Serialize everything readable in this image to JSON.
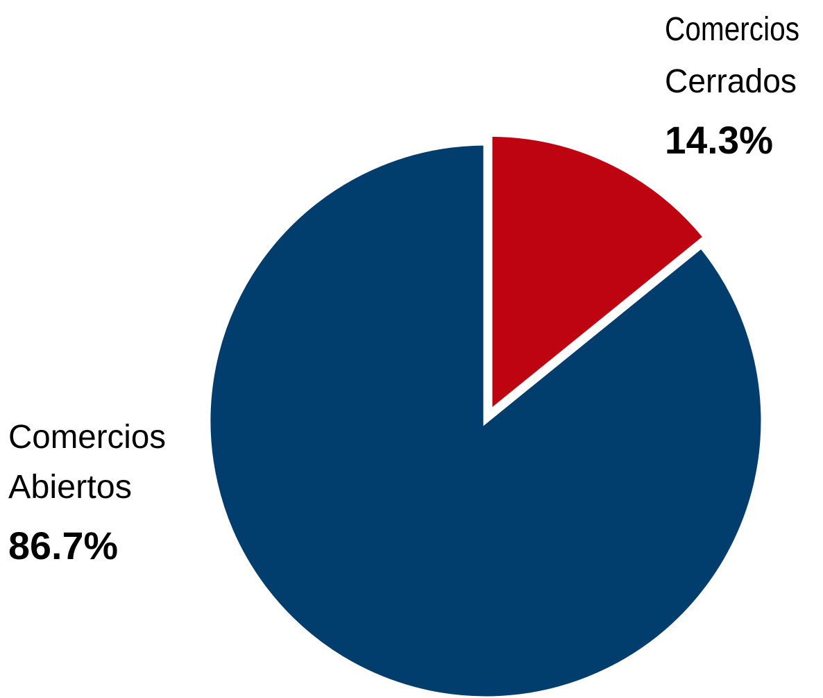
{
  "chart_data": {
    "type": "pie",
    "title": "",
    "slices": [
      {
        "key": "cerrados",
        "label_lines": [
          "Comercios",
          "Cerrados"
        ],
        "value_label": "14.3%",
        "value": 14.3,
        "color": "#BE0411",
        "exploded": true
      },
      {
        "key": "abiertos",
        "label_lines": [
          "Comercios",
          "Abiertos"
        ],
        "value_label": "86.7%",
        "value": 86.7,
        "color": "#023E6D",
        "exploded": false
      }
    ],
    "start_angle": "12 o'clock",
    "direction": "clockwise",
    "legend": "none",
    "label_placement": "outside"
  }
}
